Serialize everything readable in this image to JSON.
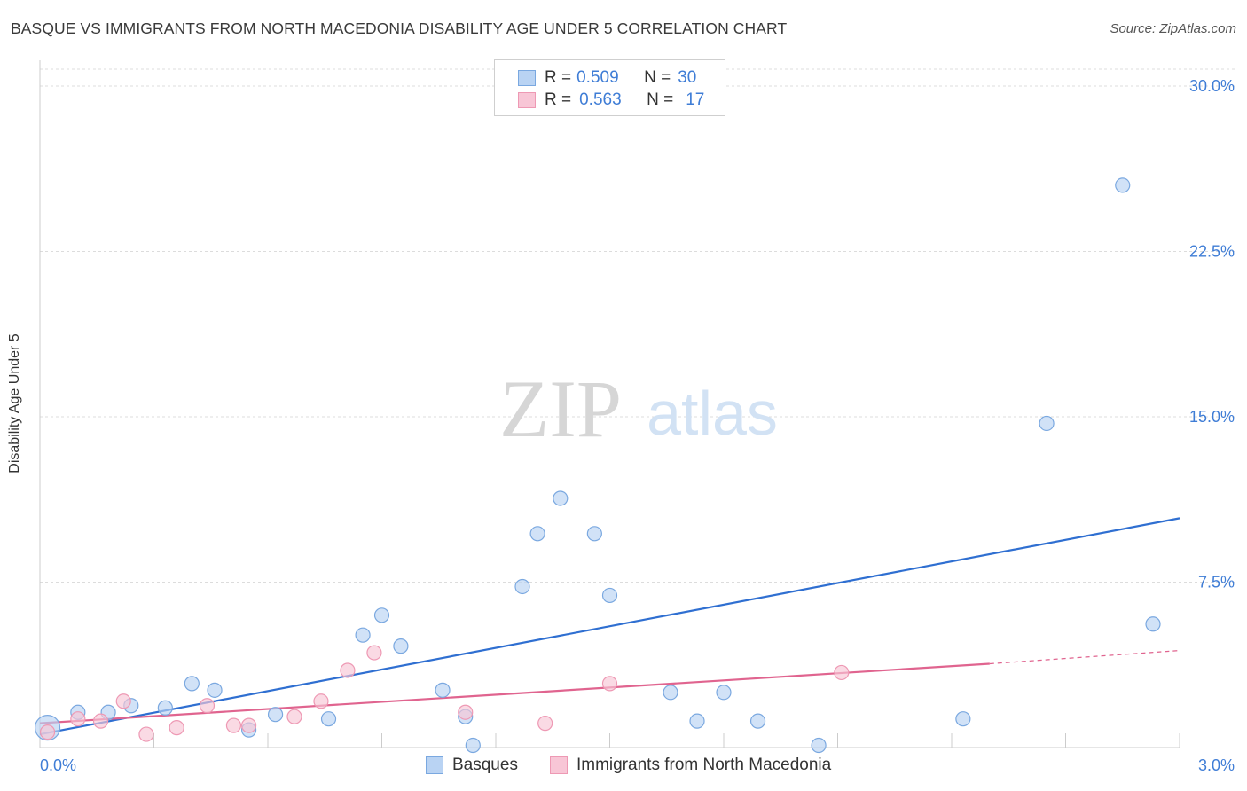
{
  "header": {
    "title": "BASQUE VS IMMIGRANTS FROM NORTH MACEDONIA DISABILITY AGE UNDER 5 CORRELATION CHART",
    "source": "Source: ZipAtlas.com"
  },
  "watermark": {
    "zip": "ZIP",
    "atlas": "atlas"
  },
  "legend_top": [
    {
      "r_label": "R =",
      "r_value": "0.509",
      "n_label": "N =",
      "n_value": "30"
    },
    {
      "r_label": "R =",
      "r_value": "0.563",
      "n_label": "N =",
      "n_value": "17"
    }
  ],
  "colors": {
    "blue_fill": "#b9d3f3",
    "blue_stroke": "#7aa8e0",
    "blue_line": "#2f6fd1",
    "pink_fill": "#f8c6d6",
    "pink_stroke": "#ee99b4",
    "pink_line": "#e0648f",
    "axis_text": "#3f7dd6",
    "grid": "#dcdcdc"
  },
  "chart_data": {
    "type": "scatter",
    "title": "BASQUE VS IMMIGRANTS FROM NORTH MACEDONIA DISABILITY AGE UNDER 5 CORRELATION CHART",
    "xlabel": "",
    "ylabel": "Disability Age Under 5",
    "xlim": [
      0,
      3.0
    ],
    "ylim": [
      0,
      30.0
    ],
    "x_tick_labels": [
      "0.0%",
      "3.0%"
    ],
    "y_ticks": [
      7.5,
      15.0,
      22.5,
      30.0
    ],
    "y_tick_labels": [
      "7.5%",
      "15.0%",
      "22.5%",
      "30.0%"
    ],
    "grid": true,
    "series": [
      {
        "name": "Basques",
        "color": "#b9d3f3",
        "r": 0.509,
        "n": 30,
        "points": [
          {
            "x": 0.02,
            "y": 0.9,
            "big": true
          },
          {
            "x": 0.1,
            "y": 1.6
          },
          {
            "x": 0.18,
            "y": 1.6
          },
          {
            "x": 0.24,
            "y": 1.9
          },
          {
            "x": 0.33,
            "y": 1.8
          },
          {
            "x": 0.4,
            "y": 2.9
          },
          {
            "x": 0.46,
            "y": 2.6
          },
          {
            "x": 0.55,
            "y": 0.8
          },
          {
            "x": 0.62,
            "y": 1.5
          },
          {
            "x": 0.76,
            "y": 1.3
          },
          {
            "x": 0.85,
            "y": 5.1
          },
          {
            "x": 0.9,
            "y": 6.0
          },
          {
            "x": 0.95,
            "y": 4.6
          },
          {
            "x": 1.06,
            "y": 2.6
          },
          {
            "x": 1.12,
            "y": 1.4
          },
          {
            "x": 1.14,
            "y": 0.1
          },
          {
            "x": 1.27,
            "y": 7.3
          },
          {
            "x": 1.31,
            "y": 9.7
          },
          {
            "x": 1.37,
            "y": 11.3
          },
          {
            "x": 1.46,
            "y": 9.7
          },
          {
            "x": 1.5,
            "y": 6.9
          },
          {
            "x": 1.66,
            "y": 2.5
          },
          {
            "x": 1.73,
            "y": 1.2
          },
          {
            "x": 1.8,
            "y": 2.5
          },
          {
            "x": 1.89,
            "y": 1.2
          },
          {
            "x": 2.05,
            "y": 0.1
          },
          {
            "x": 2.43,
            "y": 1.3
          },
          {
            "x": 2.65,
            "y": 14.7
          },
          {
            "x": 2.85,
            "y": 25.5
          },
          {
            "x": 2.93,
            "y": 5.6
          }
        ],
        "trend": {
          "x": [
            0.0,
            3.0
          ],
          "y": [
            0.6,
            10.4
          ]
        }
      },
      {
        "name": "Immigrants from North Macedonia",
        "color": "#f8c6d6",
        "r": 0.563,
        "n": 17,
        "points": [
          {
            "x": 0.02,
            "y": 0.7
          },
          {
            "x": 0.1,
            "y": 1.3
          },
          {
            "x": 0.16,
            "y": 1.2
          },
          {
            "x": 0.22,
            "y": 2.1
          },
          {
            "x": 0.28,
            "y": 0.6
          },
          {
            "x": 0.36,
            "y": 0.9
          },
          {
            "x": 0.44,
            "y": 1.9
          },
          {
            "x": 0.51,
            "y": 1.0
          },
          {
            "x": 0.55,
            "y": 1.0
          },
          {
            "x": 0.67,
            "y": 1.4
          },
          {
            "x": 0.74,
            "y": 2.1
          },
          {
            "x": 0.81,
            "y": 3.5
          },
          {
            "x": 0.88,
            "y": 4.3
          },
          {
            "x": 1.12,
            "y": 1.6
          },
          {
            "x": 1.33,
            "y": 1.1
          },
          {
            "x": 1.5,
            "y": 2.9
          },
          {
            "x": 2.11,
            "y": 3.4
          }
        ],
        "trend": {
          "x": [
            0.0,
            2.5
          ],
          "y": [
            1.1,
            3.8
          ]
        },
        "trend_extension": {
          "x": [
            2.5,
            3.0
          ],
          "y": [
            3.8,
            4.4
          ]
        }
      }
    ]
  }
}
